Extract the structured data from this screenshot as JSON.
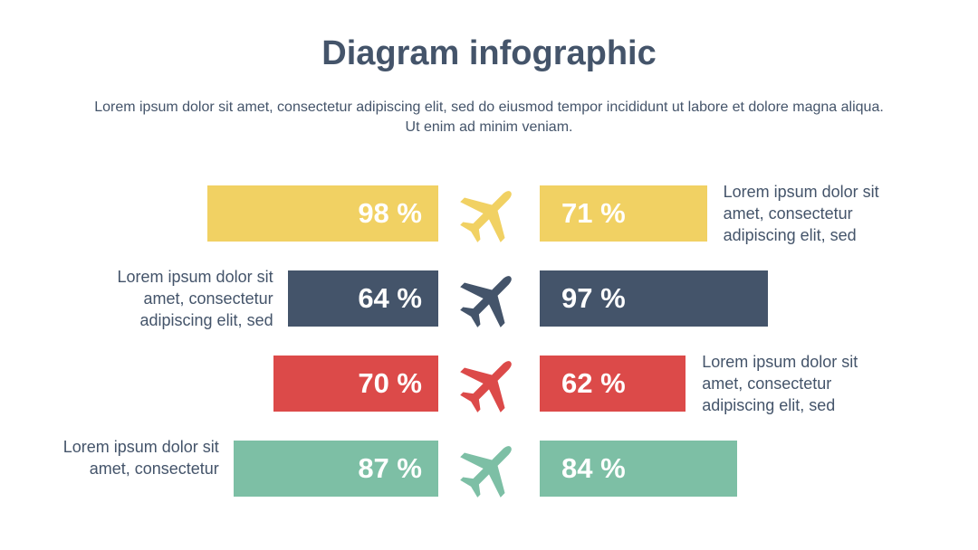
{
  "chart_data": {
    "type": "bar",
    "title": "Diagram infographic",
    "subtitle": "Lorem ipsum dolor sit amet, consectetur adipiscing elit, sed do eiusmod tempor incididunt ut labore et dolore magna aliqua. Ut enim ad minim veniam.",
    "rows": [
      {
        "color": "#f1d163",
        "left": 98,
        "left_label": "98 %",
        "right": 71,
        "right_label": "71 %",
        "note": "Lorem ipsum dolor sit amet, consectetur adipiscing elit, sed",
        "note_side": "right"
      },
      {
        "color": "#44546a",
        "left": 64,
        "left_label": "64 %",
        "right": 97,
        "right_label": "97 %",
        "note": "Lorem ipsum dolor sit amet, consectetur adipiscing elit, sed",
        "note_side": "left"
      },
      {
        "color": "#dc4a49",
        "left": 70,
        "left_label": "70 %",
        "right": 62,
        "right_label": "62 %",
        "note": "Lorem ipsum dolor sit amet, consectetur adipiscing elit, sed",
        "note_side": "right"
      },
      {
        "color": "#7dbfa5",
        "left": 87,
        "left_label": "87 %",
        "right": 84,
        "right_label": "84 %",
        "note": "Lorem ipsum dolor sit amet, consectetur",
        "note_side": "left"
      }
    ]
  }
}
